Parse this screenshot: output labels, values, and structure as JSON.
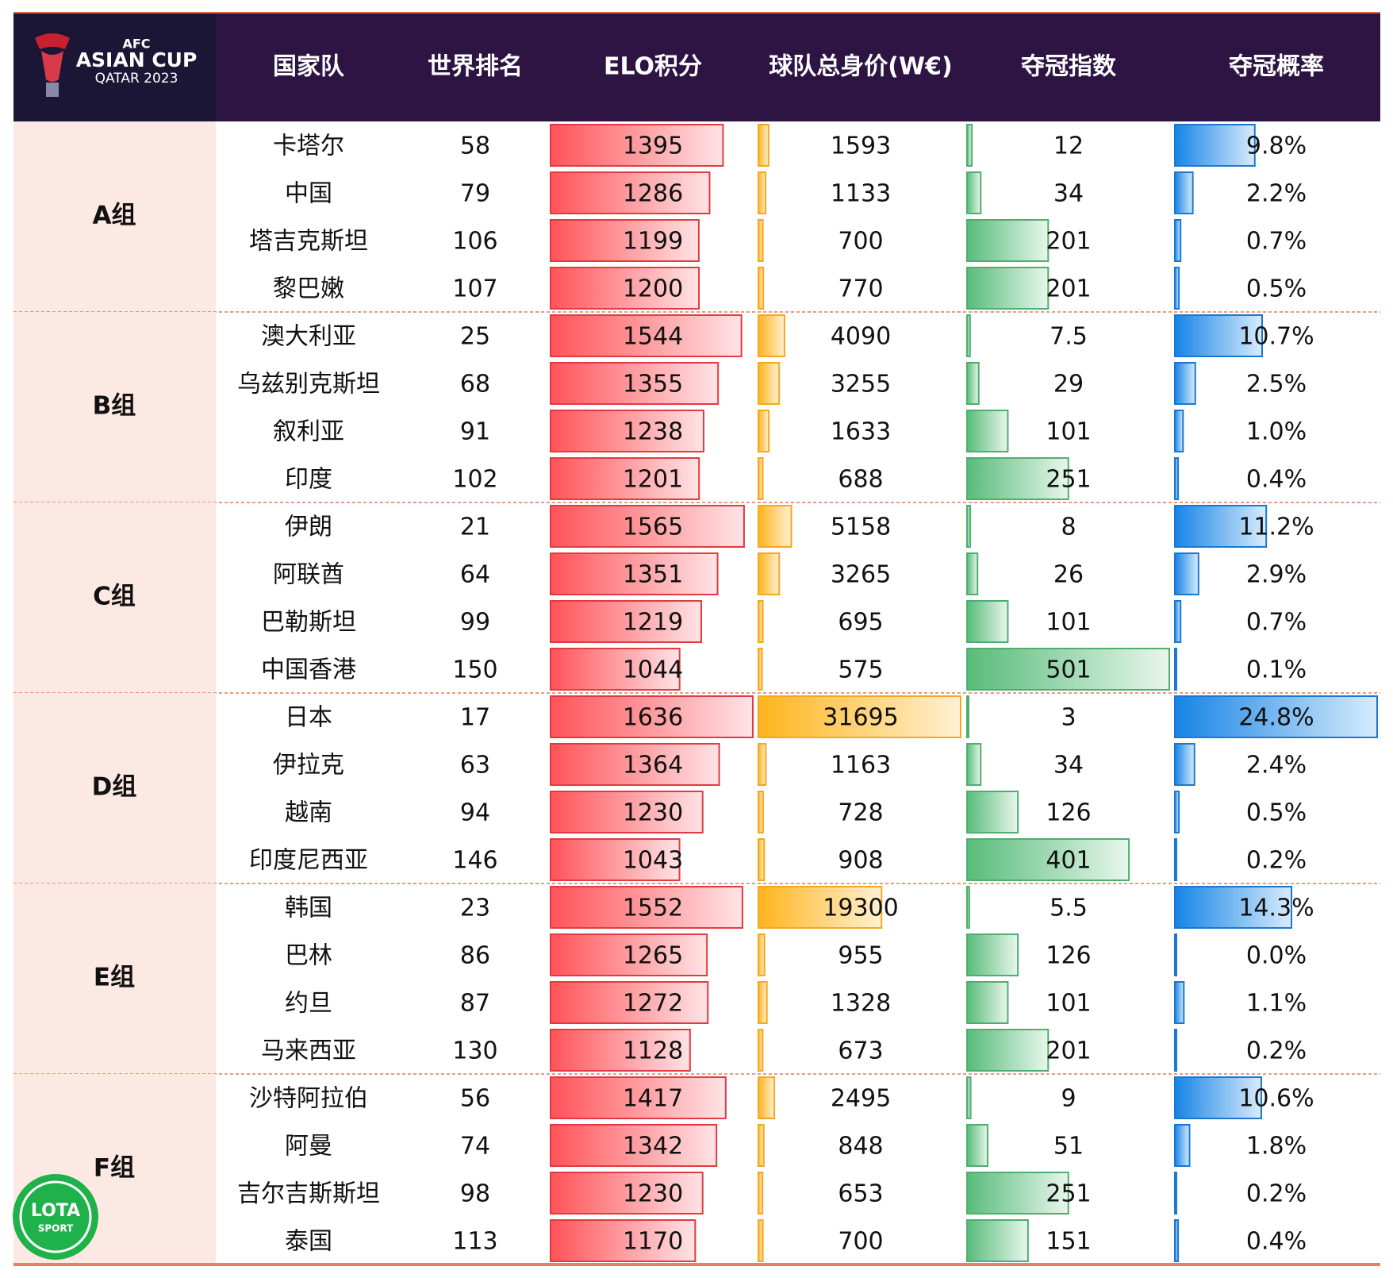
{
  "logo": {
    "line1": "AFC",
    "line2": "ASIAN CUP",
    "line3": "QATAR 2023"
  },
  "watermark": {
    "line1": "LOTA",
    "line2": "SPORT"
  },
  "header": {
    "columns": [
      "国家队",
      "世界排名",
      "ELO积分",
      "球队总身价(W€)",
      "夺冠指数",
      "夺冠概率"
    ]
  },
  "groups": [
    {
      "name": "A组",
      "rows": [
        [
          "卡塔尔",
          58,
          1395,
          1593,
          12,
          9.8,
          "9.8%"
        ],
        [
          "中国",
          79,
          1286,
          1133,
          34,
          2.2,
          "2.2%"
        ],
        [
          "塔吉克斯坦",
          106,
          1199,
          700,
          201,
          0.7,
          "0.7%"
        ],
        [
          "黎巴嫩",
          107,
          1200,
          770,
          201,
          0.5,
          "0.5%"
        ]
      ]
    },
    {
      "name": "B组",
      "rows": [
        [
          "澳大利亚",
          25,
          1544,
          4090,
          7.5,
          10.7,
          "10.7%"
        ],
        [
          "乌兹别克斯坦",
          68,
          1355,
          3255,
          29,
          2.5,
          "2.5%"
        ],
        [
          "叙利亚",
          91,
          1238,
          1633,
          101,
          1.0,
          "1.0%"
        ],
        [
          "印度",
          102,
          1201,
          688,
          251,
          0.4,
          "0.4%"
        ]
      ]
    },
    {
      "name": "C组",
      "rows": [
        [
          "伊朗",
          21,
          1565,
          5158,
          8,
          11.2,
          "11.2%"
        ],
        [
          "阿联酋",
          64,
          1351,
          3265,
          26,
          2.9,
          "2.9%"
        ],
        [
          "巴勒斯坦",
          99,
          1219,
          695,
          101,
          0.7,
          "0.7%"
        ],
        [
          "中国香港",
          150,
          1044,
          575,
          501,
          0.1,
          "0.1%"
        ]
      ]
    },
    {
      "name": "D组",
      "rows": [
        [
          "日本",
          17,
          1636,
          31695,
          3,
          24.8,
          "24.8%"
        ],
        [
          "伊拉克",
          63,
          1364,
          1163,
          34,
          2.4,
          "2.4%"
        ],
        [
          "越南",
          94,
          1230,
          728,
          126,
          0.5,
          "0.5%"
        ],
        [
          "印度尼西亚",
          146,
          1043,
          908,
          401,
          0.2,
          "0.2%"
        ]
      ]
    },
    {
      "name": "E组",
      "rows": [
        [
          "韩国",
          23,
          1552,
          19300,
          5.5,
          14.3,
          "14.3%"
        ],
        [
          "巴林",
          86,
          1265,
          955,
          126,
          0.0,
          "0.0%"
        ],
        [
          "约旦",
          87,
          1272,
          1328,
          101,
          1.1,
          "1.1%"
        ],
        [
          "马来西亚",
          130,
          1128,
          673,
          201,
          0.2,
          "0.2%"
        ]
      ]
    },
    {
      "name": "F组",
      "rows": [
        [
          "沙特阿拉伯",
          56,
          1417,
          2495,
          9,
          10.6,
          "10.6%"
        ],
        [
          "阿曼",
          74,
          1342,
          848,
          51,
          1.8,
          "1.8%"
        ],
        [
          "吉尔吉斯斯坦",
          98,
          1230,
          653,
          251,
          0.2,
          "0.2%"
        ],
        [
          "泰国",
          113,
          1170,
          700,
          151,
          0.4,
          "0.4%"
        ]
      ]
    }
  ]
}
